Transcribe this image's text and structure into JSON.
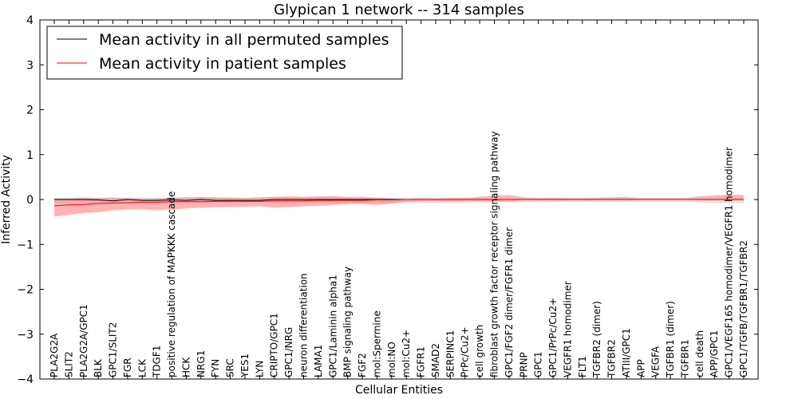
{
  "chart_data": {
    "type": "line",
    "title": "Glypican 1 network -- 314 samples",
    "xlabel": "Cellular Entities",
    "ylabel": "Inferred Activity",
    "ylim": [
      -4,
      4
    ],
    "yticks": [
      "4",
      "3",
      "2",
      "1",
      "0",
      "−1",
      "−2",
      "−3",
      "−4"
    ],
    "grid": false,
    "legend_position": "top-left",
    "categories": [
      "PLA2G2A",
      "SLIT2",
      "PLA2G2A/GPC1",
      "BLK",
      "GPC1/SLIT2",
      "FGR",
      "LCK",
      "TDGF1",
      "positive regulation of MAPKKK cascade",
      "HCK",
      "NRG1",
      "FYN",
      "SRC",
      "YES1",
      "LYN",
      "CRIPTO/GPC1",
      "GPC1/NRG",
      "neuron differentiation",
      "LAMA1",
      "GPC1/Laminin alpha1",
      "BMP signaling pathway",
      "FGF2",
      "mol:Spermine",
      "mol:NO",
      "mol:Cu2+",
      "FGFR1",
      "SMAD2",
      "SERPINC1",
      "PrPc/Cu2+",
      "cell growth",
      "fibroblast growth factor receptor signaling pathway",
      "GPC1/FGF2 dimer/FGFR1 dimer",
      "PRNP",
      "GPC1",
      "GPC1/PrPc/Cu2+",
      "VEGFR1 homodimer",
      "FLT1",
      "TGFBR2 (dimer)",
      "TGFBR2",
      "ATIII/GPC1",
      "APP",
      "VEGFA",
      "TGFBR1 (dimer)",
      "TGFBR1",
      "cell death",
      "APP/GPC1",
      "GPC1/VEGF165 homodimer/VEGFR1 homodimer",
      "GPC1/TGFB/TGFBR1/TGFBR2"
    ],
    "series": [
      {
        "name": "Mean activity in all permuted samples",
        "color": "#000000",
        "values": [
          0,
          0,
          0,
          -0.01,
          -0.03,
          0,
          -0.02,
          -0.02,
          -0.01,
          -0.02,
          0,
          -0.02,
          -0.02,
          -0.02,
          -0.02,
          0,
          0,
          0,
          0,
          0,
          0,
          0,
          0,
          0,
          0,
          0,
          0,
          0,
          0,
          0,
          0,
          0,
          0,
          0,
          0,
          0,
          0,
          0,
          0,
          0,
          0,
          0,
          0,
          0,
          0,
          0,
          0,
          0
        ],
        "band_lower": [
          -0.08,
          -0.08,
          -0.08,
          -0.08,
          -0.09,
          -0.08,
          -0.08,
          -0.08,
          -0.07,
          -0.07,
          -0.07,
          -0.07,
          -0.07,
          -0.07,
          -0.07,
          -0.07,
          -0.07,
          -0.07,
          -0.07,
          -0.07,
          -0.07,
          -0.07,
          -0.07,
          -0.07,
          -0.07,
          -0.08,
          -0.08,
          -0.07,
          -0.07,
          -0.06,
          -0.06,
          -0.06,
          -0.06,
          -0.06,
          -0.06,
          -0.05,
          -0.05,
          -0.05,
          -0.05,
          -0.05,
          -0.05,
          -0.05,
          -0.05,
          -0.05,
          -0.07,
          -0.08,
          -0.08,
          -0.08
        ],
        "band_upper": [
          0.04,
          0.04,
          0.04,
          0.04,
          0.04,
          0.04,
          0.04,
          0.04,
          0.04,
          0.04,
          0.04,
          0.04,
          0.04,
          0.04,
          0.04,
          0.04,
          0.04,
          0.04,
          0.04,
          0.04,
          0.04,
          0.04,
          0.04,
          0.04,
          0.04,
          0.04,
          0.04,
          0.04,
          0.04,
          0.03,
          0.03,
          0.03,
          0.03,
          0.03,
          0.03,
          0.03,
          0.03,
          0.03,
          0.03,
          0.03,
          0.03,
          0.03,
          0.03,
          0.03,
          0.03,
          0.04,
          0.04,
          0.04
        ],
        "band_color": "#c8c8c8"
      },
      {
        "name": "Mean activity in patient samples",
        "color": "#ff0000",
        "values": [
          -0.14,
          -0.12,
          -0.11,
          -0.09,
          -0.08,
          -0.07,
          -0.06,
          -0.06,
          -0.05,
          -0.05,
          -0.05,
          -0.04,
          -0.04,
          -0.04,
          -0.04,
          -0.03,
          -0.03,
          -0.03,
          -0.02,
          -0.02,
          -0.02,
          -0.02,
          -0.01,
          -0.01,
          0,
          0,
          0,
          0,
          0,
          0,
          0,
          0,
          0,
          0,
          0,
          0,
          0,
          0,
          0,
          0,
          0,
          0,
          0,
          0,
          0,
          0,
          0,
          0
        ],
        "band_lower": [
          -0.38,
          -0.34,
          -0.3,
          -0.28,
          -0.24,
          -0.22,
          -0.22,
          -0.24,
          -0.22,
          -0.2,
          -0.18,
          -0.17,
          -0.17,
          -0.16,
          -0.15,
          -0.18,
          -0.17,
          -0.15,
          -0.14,
          -0.12,
          -0.1,
          -0.1,
          -0.12,
          -0.09,
          -0.05,
          -0.03,
          -0.03,
          -0.04,
          -0.03,
          -0.03,
          -0.04,
          -0.04,
          -0.02,
          -0.02,
          -0.02,
          -0.02,
          -0.02,
          -0.02,
          -0.02,
          -0.02,
          -0.01,
          -0.01,
          -0.01,
          -0.01,
          -0.02,
          -0.02,
          -0.02,
          -0.02
        ],
        "band_upper": [
          0.02,
          0.02,
          0.04,
          0.03,
          0.04,
          0.03,
          0.02,
          0.02,
          0.04,
          0.05,
          0.06,
          0.05,
          0.04,
          0.03,
          0.05,
          0.06,
          0.07,
          0.06,
          0.07,
          0.08,
          0.06,
          0.06,
          0.04,
          0.02,
          0.01,
          0.03,
          0.02,
          0.03,
          0.03,
          0.06,
          0.09,
          0.1,
          0.05,
          0.03,
          0.04,
          0.03,
          0.03,
          0.04,
          0.05,
          0.06,
          0.03,
          0.03,
          0.03,
          0.03,
          0.07,
          0.09,
          0.11,
          0.1
        ],
        "band_color": "#ff8080"
      }
    ]
  }
}
